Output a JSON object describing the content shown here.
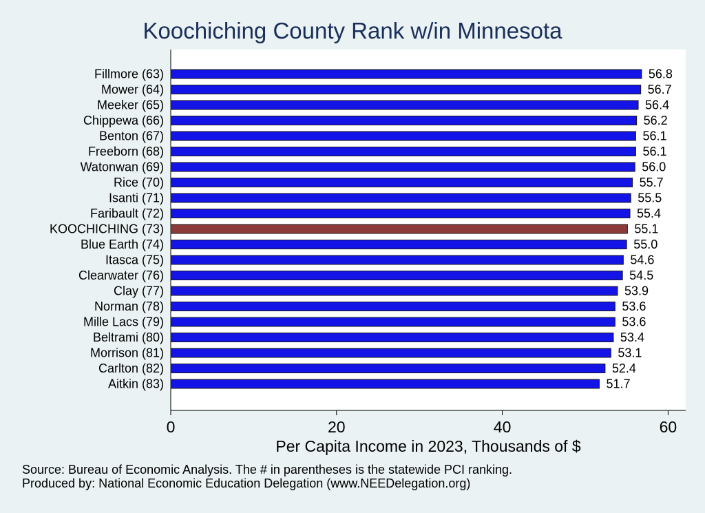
{
  "chart_data": {
    "type": "bar",
    "orientation": "horizontal",
    "title": "Koochiching County Rank w/in Minnesota",
    "xlabel": "Per Capita Income in 2023, Thousands of $",
    "xlim": [
      0,
      62
    ],
    "xticks": [
      0,
      20,
      40,
      60
    ],
    "grid": false,
    "legend": "none",
    "categories": [
      "Fillmore (63)",
      "Mower (64)",
      "Meeker (65)",
      "Chippewa (66)",
      "Benton (67)",
      "Freeborn (68)",
      "Watonwan (69)",
      "Rice (70)",
      "Isanti (71)",
      "Faribault (72)",
      "KOOCHICHING (73)",
      "Blue Earth (74)",
      "Itasca (75)",
      "Clearwater (76)",
      "Clay (77)",
      "Norman (78)",
      "Mille Lacs (79)",
      "Beltrami (80)",
      "Morrison (81)",
      "Carlton (82)",
      "Aitkin (83)"
    ],
    "values": [
      56.8,
      56.7,
      56.4,
      56.2,
      56.1,
      56.1,
      56.0,
      55.7,
      55.5,
      55.4,
      55.1,
      55.0,
      54.6,
      54.5,
      53.9,
      53.6,
      53.6,
      53.4,
      53.1,
      52.4,
      51.7
    ],
    "value_labels": [
      "56.8",
      "56.7",
      "56.4",
      "56.2",
      "56.1",
      "56.1",
      "56.0",
      "55.7",
      "55.5",
      "55.4",
      "55.1",
      "55.0",
      "54.6",
      "54.5",
      "53.9",
      "53.6",
      "53.6",
      "53.4",
      "53.1",
      "52.4",
      "51.7"
    ],
    "highlight_index": 10,
    "colors": {
      "bar": "#1414e6",
      "highlight": "#8c3a3a",
      "title": "#1a2e5a",
      "background": "#eaf2f3",
      "plot_background": "#ffffff"
    }
  },
  "notes": {
    "source": "Source: Bureau of Economic Analysis. The # in parentheses is the statewide PCI ranking.",
    "produced_by": "Produced by: National Economic Education Delegation (www.NEEDelegation.org)"
  }
}
